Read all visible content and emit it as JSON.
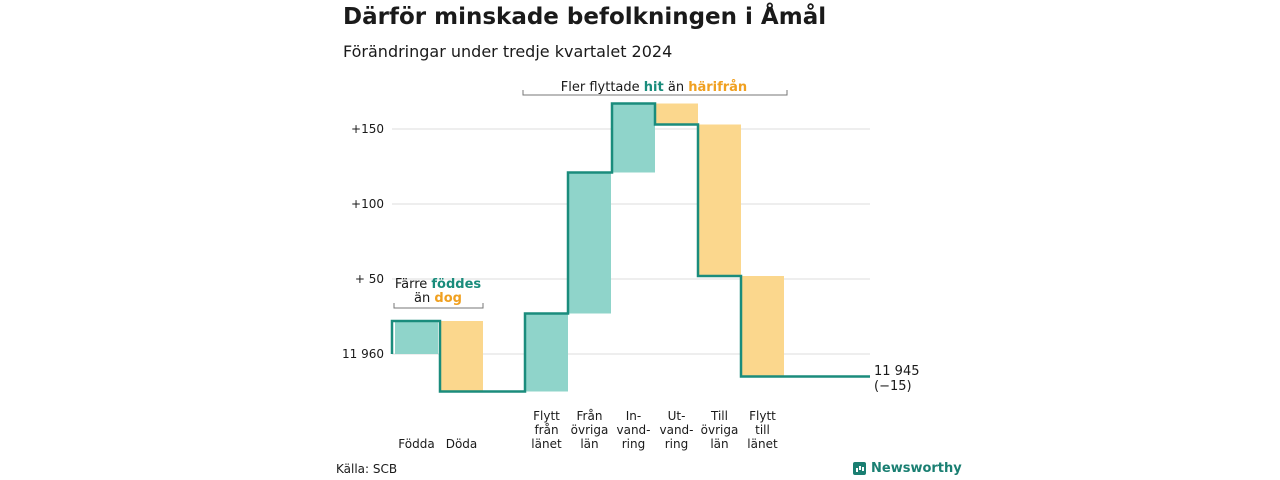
{
  "header": {
    "title": "Därför minskade befolkningen i Åmål",
    "subtitle": "Förändringar under tredje kvartalet 2024"
  },
  "footer": {
    "source": "Källa: SCB",
    "brand": "Newsworthy"
  },
  "colors": {
    "increase": "#8fd4ca",
    "decrease": "#fbd78d",
    "line": "#1a8c7c",
    "grid": "#dddddd",
    "hit": "#1a8c7c",
    "harifran": "#f0a020"
  },
  "annotations": {
    "births_deaths": {
      "line1_pre": "Färre ",
      "line1_key": "föddes",
      "line2_pre": "än ",
      "line2_key": "dog"
    },
    "migration": {
      "pre": "Fler flyttade ",
      "key1": "hit",
      "mid": " än ",
      "key2": "härifrån"
    }
  },
  "end_label": {
    "value": "11 945",
    "change": "(−15)"
  },
  "chart_data": {
    "type": "waterfall",
    "start_value": 11960,
    "end_value": 11945,
    "y_axis": {
      "ticks": [
        0,
        50,
        100,
        150
      ],
      "tick_labels": [
        "11 960",
        "+ 50",
        "+100",
        "+150"
      ],
      "range": [
        -28,
        165
      ]
    },
    "grid": true,
    "steps": [
      {
        "label": [
          "Födda"
        ],
        "change": 22
      },
      {
        "label": [
          "Döda"
        ],
        "change": -47
      },
      {
        "label": [
          "Flytt",
          "från",
          "länet"
        ],
        "change": 52
      },
      {
        "label": [
          "Från",
          "övriga",
          "län"
        ],
        "change": 94
      },
      {
        "label": [
          "In-",
          "vand-",
          "ring"
        ],
        "change": 46
      },
      {
        "label": [
          "Ut-",
          "vand-",
          "ring"
        ],
        "change": -14
      },
      {
        "label": [
          "Till",
          "övriga",
          "län"
        ],
        "change": -101
      },
      {
        "label": [
          "Flytt",
          "till",
          "länet"
        ],
        "change": -67
      }
    ]
  }
}
